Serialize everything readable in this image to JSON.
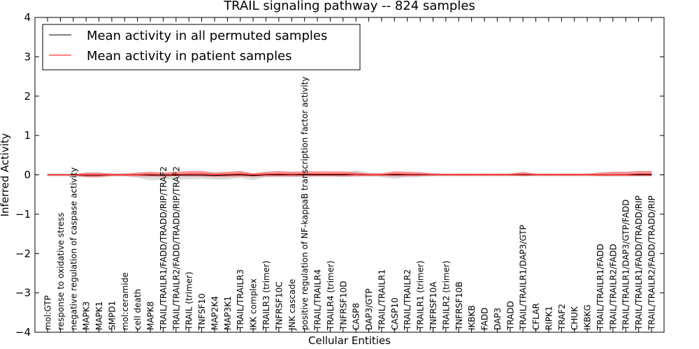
{
  "chart_data": {
    "type": "line",
    "title": "TRAIL signaling pathway -- 824 samples",
    "xlabel": "Cellular Entities",
    "ylabel": "Inferred Activity",
    "ylim": [
      -4,
      4
    ],
    "yticks": [
      -4,
      -3,
      -2,
      -1,
      0,
      1,
      2,
      3,
      4
    ],
    "ytick_labels": [
      "−4",
      "−3",
      "−2",
      "−1",
      "0",
      "1",
      "2",
      "3",
      "4"
    ],
    "grid": false,
    "legend_position": "top-left",
    "categories": [
      "mol:GTP",
      "response to oxidative stress",
      "negative regulation of caspase activity",
      "MAPK3",
      "MAPK1",
      "SMPD1",
      "mol:ceramide",
      "cell death",
      "MAPK8",
      "TRAIL/TRAILR1/FADD/TRADD/RIP/TRAF2",
      "TRAIL/TRAILR2/FADD/TRADD/RIP/TRAF2",
      "TRAIL (trimer)",
      "TNFSF10",
      "MAP2K4",
      "MAP3K1",
      "TRAIL/TRAILR3",
      "IKK complex",
      "TRAILR3 (trimer)",
      "TNFRSF10C",
      "JNK cascade",
      "positive regulation of NF-kappaB transcription factor activity",
      "TRAIL/TRAILR4",
      "TRAILR4 (trimer)",
      "TNFRSF10D",
      "CASP8",
      "DAP3/GTP",
      "TRAIL/TRAILR1",
      "CASP10",
      "TRAIL/TRAILR2",
      "TRAILR1 (trimer)",
      "TNFRSF10A",
      "TRAILR2 (trimer)",
      "TNFRSF10B",
      "IKBKB",
      "FADD",
      "DAP3",
      "TRADD",
      "TRAIL/TRAILR1/DAP3/GTP",
      "CFLAR",
      "RIPK1",
      "TRAF2",
      "CHUK",
      "IKBKG",
      "TRAIL/TRAILR1/FADD",
      "TRAIL/TRAILR2/FADD",
      "TRAIL/TRAILR1/DAP3/GTP/FADD",
      "TRAIL/TRAILR1/FADD/TRADD/RIP",
      "TRAIL/TRAILR2/FADD/TRADD/RIP"
    ],
    "series": [
      {
        "name": "Mean activity in all permuted samples",
        "color": "#000000",
        "values": [
          0.0,
          0.0,
          0.0,
          -0.01,
          -0.01,
          0.0,
          0.0,
          0.0,
          -0.01,
          -0.01,
          -0.01,
          -0.01,
          -0.01,
          -0.02,
          -0.01,
          0.0,
          -0.02,
          0.0,
          0.0,
          0.0,
          0.0,
          0.0,
          0.0,
          0.0,
          0.01,
          0.0,
          0.0,
          0.0,
          0.0,
          0.0,
          0.0,
          0.0,
          0.0,
          0.0,
          0.0,
          0.0,
          0.0,
          0.0,
          0.0,
          0.0,
          0.0,
          0.0,
          0.0,
          0.0,
          0.0,
          0.0,
          0.0,
          0.0
        ]
      },
      {
        "name": "Mean activity in patient samples",
        "color": "#ff0000",
        "values": [
          0.0,
          0.0,
          0.0,
          0.0,
          0.0,
          0.0,
          0.0,
          0.0,
          0.01,
          0.0,
          0.01,
          0.02,
          0.02,
          0.01,
          0.01,
          0.02,
          0.0,
          0.01,
          0.02,
          0.01,
          0.02,
          0.02,
          0.02,
          0.02,
          0.01,
          0.0,
          0.0,
          0.02,
          0.01,
          0.01,
          0.0,
          0.0,
          0.0,
          0.0,
          0.0,
          0.0,
          0.0,
          0.01,
          0.0,
          0.0,
          0.0,
          0.0,
          0.0,
          0.0,
          0.0,
          0.0,
          0.02,
          0.02
        ]
      }
    ],
    "bands": {
      "permuted_low": [
        -0.04,
        -0.04,
        -0.04,
        -0.06,
        -0.06,
        -0.04,
        -0.04,
        -0.07,
        -0.14,
        -0.12,
        -0.12,
        -0.12,
        -0.1,
        -0.12,
        -0.12,
        -0.08,
        -0.14,
        -0.06,
        -0.06,
        -0.06,
        -0.06,
        -0.04,
        -0.04,
        -0.06,
        -0.04,
        -0.04,
        -0.06,
        -0.1,
        -0.06,
        -0.06,
        -0.04,
        -0.04,
        -0.04,
        -0.04,
        -0.04,
        -0.04,
        -0.04,
        -0.04,
        -0.04,
        -0.04,
        -0.04,
        -0.04,
        -0.04,
        -0.04,
        -0.04,
        -0.04,
        -0.04,
        -0.04
      ],
      "permuted_high": [
        0.04,
        0.04,
        0.04,
        0.04,
        0.04,
        0.04,
        0.04,
        0.04,
        0.04,
        0.04,
        0.04,
        0.04,
        0.04,
        0.04,
        0.04,
        0.06,
        0.04,
        0.04,
        0.04,
        0.06,
        0.04,
        0.04,
        0.04,
        0.04,
        0.12,
        0.06,
        0.04,
        0.04,
        0.04,
        0.04,
        0.04,
        0.04,
        0.04,
        0.04,
        0.04,
        0.04,
        0.04,
        0.04,
        0.04,
        0.04,
        0.04,
        0.04,
        0.04,
        0.04,
        0.04,
        0.04,
        0.04,
        0.04
      ],
      "patient_low": [
        -0.02,
        -0.02,
        -0.02,
        -0.06,
        -0.06,
        -0.03,
        -0.03,
        -0.04,
        -0.04,
        -0.05,
        -0.03,
        -0.04,
        -0.04,
        -0.05,
        -0.05,
        -0.04,
        -0.05,
        -0.04,
        -0.04,
        -0.04,
        -0.04,
        -0.04,
        -0.04,
        -0.04,
        -0.04,
        -0.03,
        -0.03,
        -0.04,
        -0.04,
        -0.03,
        -0.02,
        -0.02,
        -0.02,
        -0.02,
        -0.02,
        -0.02,
        -0.02,
        -0.03,
        -0.02,
        -0.02,
        -0.02,
        -0.02,
        -0.02,
        -0.03,
        -0.03,
        -0.03,
        -0.03,
        -0.03
      ],
      "patient_high": [
        0.02,
        0.02,
        0.02,
        0.06,
        0.06,
        0.03,
        0.03,
        0.06,
        0.08,
        0.06,
        0.08,
        0.1,
        0.1,
        0.06,
        0.08,
        0.1,
        0.04,
        0.08,
        0.1,
        0.08,
        0.09,
        0.09,
        0.09,
        0.09,
        0.06,
        0.04,
        0.04,
        0.09,
        0.08,
        0.07,
        0.04,
        0.03,
        0.03,
        0.03,
        0.03,
        0.03,
        0.03,
        0.08,
        0.03,
        0.03,
        0.03,
        0.03,
        0.03,
        0.06,
        0.08,
        0.08,
        0.1,
        0.1
      ]
    },
    "band_colors": {
      "permuted": "#bbbbbb",
      "patient": "#ee4444"
    }
  }
}
